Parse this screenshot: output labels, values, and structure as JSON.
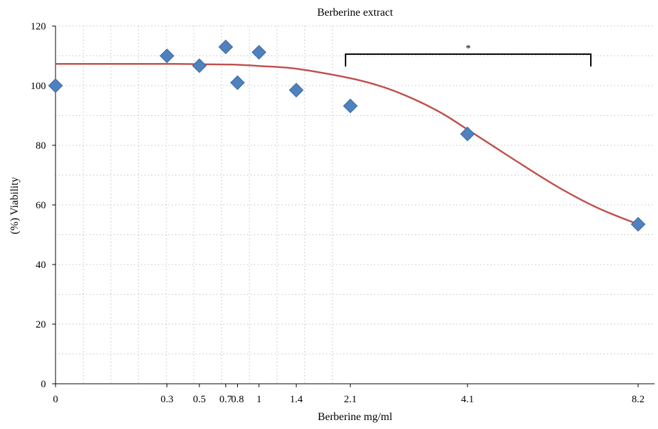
{
  "chart_data": {
    "type": "scatter",
    "title": "Berberine extract",
    "xlabel": "Berberine mg/ml",
    "ylabel": "(%) Viability",
    "ylim": [
      0,
      120
    ],
    "yticks": [
      "0",
      "20",
      "40",
      "60",
      "80",
      "100",
      "120"
    ],
    "xticks": [
      "0",
      "0.3",
      "0.5",
      "0.7",
      "0.8",
      "1",
      "1.4",
      "2.1",
      "4.1",
      "8.2"
    ],
    "grid": true,
    "legend": "none",
    "series": [
      {
        "type": "scatter",
        "marker": "diamond",
        "color": "#4f81bd",
        "x": [
          0,
          0.3,
          0.5,
          0.7,
          0.8,
          1,
          1.4,
          2.1,
          4.1,
          8.2
        ],
        "y": [
          100,
          110,
          106.7,
          113,
          101,
          111.2,
          98.5,
          93.2,
          83.8,
          53.5
        ]
      },
      {
        "type": "line",
        "color": "#c0504d",
        "x": [
          0,
          0.3,
          0.5,
          0.7,
          0.8,
          1,
          1.4,
          2.1,
          2.6,
          3.1,
          3.6,
          4.1,
          5.1,
          6.1,
          7.1,
          8.2
        ],
        "y": [
          107.3,
          107.3,
          107.2,
          107.1,
          107.0,
          106.6,
          105.7,
          102.5,
          99.5,
          95.5,
          90.8,
          85.3,
          75.0,
          66.0,
          59.0,
          53.5
        ]
      }
    ],
    "annotations": [
      {
        "text": "*",
        "type": "bracket",
        "from": "2.1",
        "to": "8.2"
      }
    ]
  }
}
